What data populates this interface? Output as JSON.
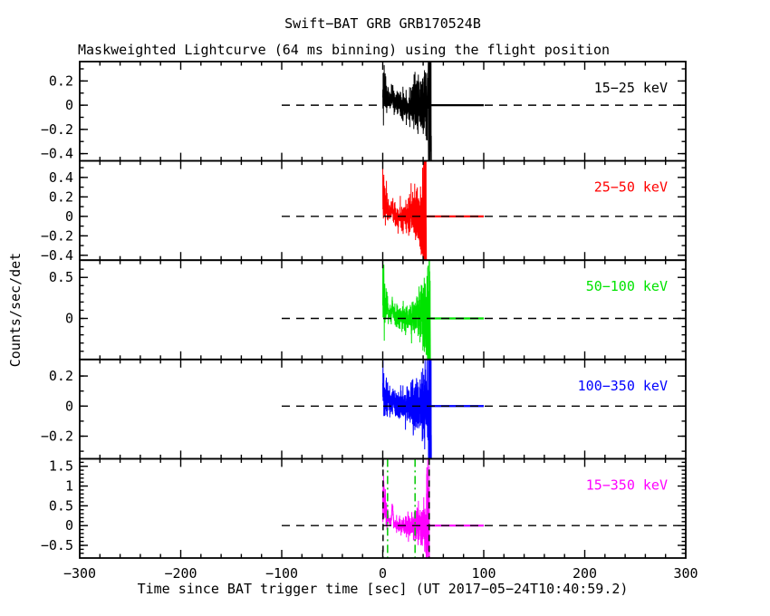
{
  "figure": {
    "title": "Swift−BAT GRB GRB170524B",
    "subtitle": "Maskweighted Lightcurve (64 ms binning) using the flight position",
    "x_label": "Time since BAT trigger time [sec] (UT 2017−05−24T10:40:59.2)",
    "y_label": "Counts/sec/det",
    "background_color": "#ffffff",
    "axis_color": "#000000"
  },
  "chart_data": {
    "type": "line",
    "title": "Swift−BAT GRB GRB170524B",
    "subtitle": "Maskweighted Lightcurve (64 ms binning) using the flight position",
    "xlabel": "Time since BAT trigger time [sec] (UT 2017−05−24T10:40:59.2)",
    "ylabel": "Counts/sec/det",
    "grid": false,
    "x_range": [
      -300,
      300
    ],
    "x_minor_step": 20,
    "x_major_ticks": [
      {
        "v": -300,
        "label": "−300"
      },
      {
        "v": -200,
        "label": "−200"
      },
      {
        "v": -100,
        "label": "−100"
      },
      {
        "v": 0,
        "label": "0"
      },
      {
        "v": 100,
        "label": "100"
      },
      {
        "v": 200,
        "label": "200"
      },
      {
        "v": 300,
        "label": "300"
      }
    ],
    "zero_line": {
      "style": "dashed",
      "from": -100,
      "to": 300,
      "color": "#000000",
      "y": 0
    },
    "post_burst_solid_line_to": 100,
    "panels": [
      {
        "key": "15-25-kev",
        "label": "15−25 keV",
        "color": "#000000",
        "seed": 42,
        "y_range": [
          -0.46,
          0.36
        ],
        "y_minor_step": 0.1,
        "y_ticks": [
          {
            "v": 0.2,
            "label": "0.2"
          },
          {
            "v": 0,
            "label": "0"
          },
          {
            "v": -0.2,
            "label": "−0.2"
          },
          {
            "v": -0.4,
            "label": "−0.4"
          }
        ],
        "burst": {
          "t_start": 0,
          "t_end": 48,
          "initial_mean": 0.16,
          "decay_tau": 5,
          "secondary_pulse": {
            "t": 9.5,
            "amp": 0.06,
            "width": 1.2
          },
          "baseline_sigma": 0.045,
          "end_sigma": 0.17,
          "early_extra_sigma": 0.055,
          "end_spike_high": 0.33,
          "end_spike_low": -0.46
        }
      },
      {
        "key": "25-50-kev",
        "label": "25−50 keV",
        "color": "#ff0000",
        "seed": 7,
        "y_range": [
          -0.45,
          0.57
        ],
        "y_minor_step": 0.1,
        "y_ticks": [
          {
            "v": 0.4,
            "label": "0.4"
          },
          {
            "v": 0.2,
            "label": "0.2"
          },
          {
            "v": 0,
            "label": "0"
          },
          {
            "v": -0.2,
            "label": "−0.2"
          },
          {
            "v": -0.4,
            "label": "−0.4"
          }
        ],
        "burst": {
          "t_start": 0,
          "t_end": 43,
          "initial_mean": 0.22,
          "decay_tau": 4.5,
          "secondary_pulse": {
            "t": 9.5,
            "amp": 0.08,
            "width": 1.2
          },
          "baseline_sigma": 0.05,
          "end_sigma": 0.2,
          "early_extra_sigma": 0.1,
          "end_spike_high": 0.56,
          "end_spike_low": -0.45
        }
      },
      {
        "key": "50-100-kev",
        "label": "50−100 keV",
        "color": "#00e300",
        "seed": 13,
        "y_range": [
          -0.5,
          0.71
        ],
        "y_minor_step": 0.1,
        "y_ticks": [
          {
            "v": 0.5,
            "label": "0.5"
          },
          {
            "v": 0,
            "label": "0"
          }
        ],
        "burst": {
          "t_start": 0,
          "t_end": 47,
          "initial_mean": 0.3,
          "decay_tau": 4,
          "secondary_pulse": {
            "t": 9.5,
            "amp": 0.12,
            "width": 1.1
          },
          "baseline_sigma": 0.06,
          "end_sigma": 0.24,
          "early_extra_sigma": 0.15,
          "end_spike_high": 0.62,
          "end_spike_low": -0.5
        }
      },
      {
        "key": "100-350-kev",
        "label": "100−350 keV",
        "color": "#0000ff",
        "seed": 99,
        "y_range": [
          -0.35,
          0.31
        ],
        "y_minor_step": 0.1,
        "y_ticks": [
          {
            "v": 0.2,
            "label": "0.2"
          },
          {
            "v": 0,
            "label": "0"
          },
          {
            "v": -0.2,
            "label": "−0.2"
          }
        ],
        "burst": {
          "t_start": 0,
          "t_end": 48,
          "initial_mean": 0.1,
          "decay_tau": 5,
          "secondary_pulse": {
            "t": 9.5,
            "amp": 0.04,
            "width": 1.2
          },
          "baseline_sigma": 0.045,
          "end_sigma": 0.15,
          "early_extra_sigma": 0.05,
          "end_spike_high": 0.3,
          "end_spike_low": -0.35
        }
      },
      {
        "key": "15-350-kev",
        "label": "15−350 keV",
        "color": "#ff00ff",
        "seed": 5,
        "y_range": [
          -0.82,
          1.69
        ],
        "y_minor_step": 0.1,
        "y_ticks": [
          {
            "v": 1.5,
            "label": "1.5"
          },
          {
            "v": 1,
            "label": "1"
          },
          {
            "v": 0.5,
            "label": "0.5"
          },
          {
            "v": 0,
            "label": "0"
          },
          {
            "v": -0.5,
            "label": "−0.5"
          }
        ],
        "burst": {
          "t_start": 0,
          "t_end": 46,
          "initial_mean": 0.85,
          "decay_tau": 3.5,
          "secondary_pulse": {
            "t": 9.5,
            "amp": 0.45,
            "width": 0.9
          },
          "baseline_sigma": 0.07,
          "end_sigma": 0.33,
          "early_extra_sigma": 0.33,
          "end_spike_high": 1.3,
          "end_spike_low": -0.8
        }
      }
    ],
    "burst_markers": {
      "panel": "15-350-kev",
      "vertical_lines": [
        {
          "t": 0.3,
          "color": "#000000",
          "style": "dashed"
        },
        {
          "t": 46,
          "color": "#000000",
          "style": "dashed"
        },
        {
          "t": 4.8,
          "color": "#00c800",
          "style": "dash-dot"
        },
        {
          "t": 32,
          "color": "#00c800",
          "style": "dash-dot"
        }
      ]
    }
  }
}
